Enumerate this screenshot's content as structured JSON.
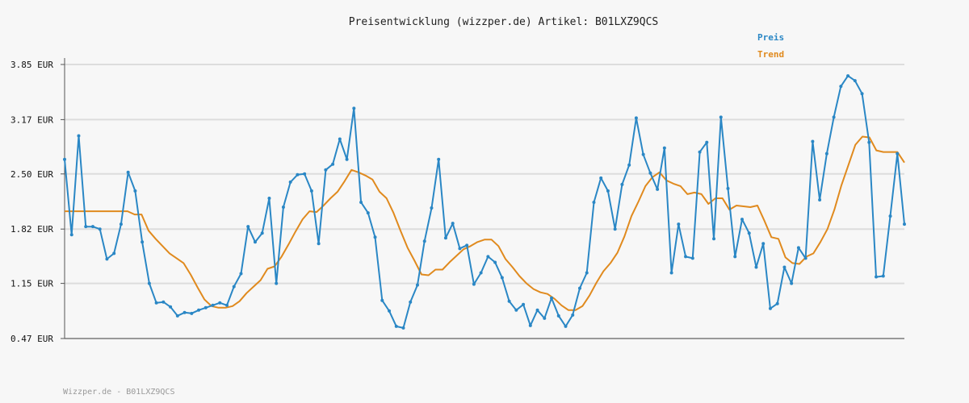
{
  "chart_data": {
    "type": "line",
    "title": "Preisentwicklung (wizzper.de) Artikel: B01LXZ9QCS",
    "y_tick_labels": [
      "3.85 EUR",
      "3.17 EUR",
      "2.50 EUR",
      "1.82 EUR",
      "1.15 EUR",
      "0.47 EUR"
    ],
    "y_ticks": [
      3.85,
      3.17,
      2.5,
      1.82,
      1.15,
      0.47
    ],
    "ylim": [
      0.47,
      3.85
    ],
    "grid": true,
    "legend_position": "top-right",
    "series": [
      {
        "name": "Preis",
        "color": "#2a87c5",
        "values": [
          2.68,
          1.75,
          2.97,
          1.85,
          1.85,
          1.82,
          1.45,
          1.52,
          1.88,
          2.52,
          2.29,
          1.66,
          1.15,
          0.91,
          0.92,
          0.86,
          0.75,
          0.79,
          0.78,
          0.82,
          0.85,
          0.88,
          0.91,
          0.88,
          1.11,
          1.27,
          1.85,
          1.66,
          1.77,
          2.2,
          1.15,
          2.09,
          2.4,
          2.49,
          2.5,
          2.29,
          1.64,
          2.55,
          2.62,
          2.93,
          2.68,
          3.31,
          2.15,
          2.02,
          1.72,
          0.94,
          0.81,
          0.62,
          0.6,
          0.92,
          1.13,
          1.67,
          2.08,
          2.68,
          1.71,
          1.89,
          1.58,
          1.62,
          1.14,
          1.28,
          1.48,
          1.41,
          1.22,
          0.93,
          0.82,
          0.89,
          0.63,
          0.82,
          0.72,
          0.97,
          0.75,
          0.62,
          0.76,
          1.09,
          1.28,
          2.15,
          2.45,
          2.29,
          1.82,
          2.37,
          2.61,
          3.19,
          2.74,
          2.51,
          2.31,
          2.82,
          1.28,
          1.88,
          1.48,
          1.46,
          2.77,
          2.89,
          1.7,
          3.2,
          2.32,
          1.48,
          1.94,
          1.77,
          1.35,
          1.64,
          0.84,
          0.9,
          1.35,
          1.15,
          1.59,
          1.46,
          2.9,
          2.18,
          2.75,
          3.2,
          3.58,
          3.71,
          3.65,
          3.49,
          2.89,
          1.23,
          1.24,
          1.98,
          2.75,
          1.88
        ]
      },
      {
        "name": "Trend",
        "color": "#e08a1e",
        "values": [
          2.04,
          2.04,
          2.04,
          2.04,
          2.04,
          2.04,
          2.04,
          2.04,
          2.04,
          2.04,
          2.0,
          2.0,
          1.8,
          1.7,
          1.61,
          1.52,
          1.46,
          1.4,
          1.26,
          1.1,
          0.95,
          0.87,
          0.85,
          0.85,
          0.87,
          0.93,
          1.03,
          1.11,
          1.19,
          1.33,
          1.36,
          1.48,
          1.63,
          1.79,
          1.94,
          2.04,
          2.03,
          2.11,
          2.2,
          2.28,
          2.41,
          2.55,
          2.52,
          2.48,
          2.43,
          2.28,
          2.2,
          2.02,
          1.8,
          1.59,
          1.43,
          1.26,
          1.25,
          1.32,
          1.32,
          1.41,
          1.49,
          1.57,
          1.61,
          1.66,
          1.69,
          1.69,
          1.61,
          1.45,
          1.35,
          1.24,
          1.15,
          1.08,
          1.04,
          1.02,
          0.96,
          0.88,
          0.82,
          0.82,
          0.87,
          1.0,
          1.16,
          1.3,
          1.4,
          1.53,
          1.73,
          1.98,
          2.16,
          2.35,
          2.46,
          2.52,
          2.42,
          2.38,
          2.35,
          2.25,
          2.27,
          2.25,
          2.13,
          2.2,
          2.2,
          2.06,
          2.11,
          2.1,
          2.09,
          2.11,
          1.92,
          1.72,
          1.7,
          1.47,
          1.4,
          1.39,
          1.48,
          1.52,
          1.66,
          1.82,
          2.06,
          2.36,
          2.61,
          2.86,
          2.96,
          2.95,
          2.79,
          2.77,
          2.77,
          2.77,
          2.64
        ]
      }
    ]
  },
  "footer_text": "Wizzper.de - B01LXZ9QCS"
}
